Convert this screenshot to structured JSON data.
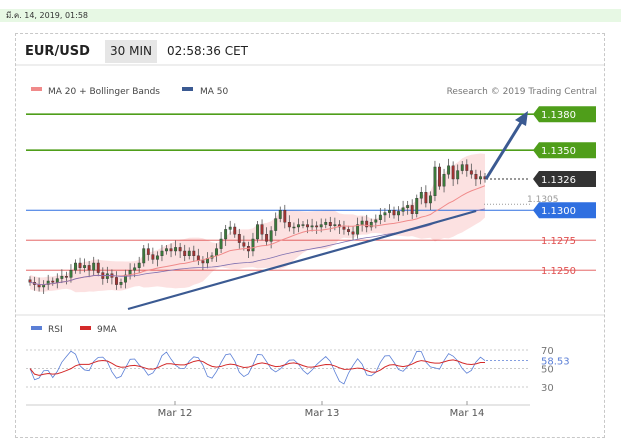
{
  "topbar": {
    "datetime": "มี.ค. 14, 2019, 01:58"
  },
  "header": {
    "symbol": "EUR/USD",
    "timeframe": "30 MIN",
    "clock": "02:58:36 CET"
  },
  "legend": {
    "ma20": {
      "label": "MA 20 + Bollinger Bands",
      "color": "#f08a8a"
    },
    "ma50": {
      "label": "MA 50",
      "color": "#3b5a92"
    }
  },
  "credit": "Research © 2019 Trading Central",
  "chart_data": {
    "type": "candlestick",
    "ylim": [
      1.1232,
      1.1392
    ],
    "levels": [
      {
        "value": 1.138,
        "label": "1.1380",
        "style": "resistance",
        "color": "#4f9e1a"
      },
      {
        "value": 1.135,
        "label": "1.1350",
        "style": "resistance",
        "color": "#4f9e1a"
      },
      {
        "value": 1.1326,
        "label": "1.1326",
        "style": "last",
        "color": "#333333"
      },
      {
        "value": 1.1305,
        "label": "1.1305",
        "style": "tick",
        "color": "#999999"
      },
      {
        "value": 1.13,
        "label": "1.1300",
        "style": "pivot",
        "color": "#2f6fe0"
      },
      {
        "value": 1.1275,
        "label": "1.1275",
        "style": "support",
        "color": "#e05050"
      },
      {
        "value": 1.125,
        "label": "1.1250",
        "style": "support",
        "color": "#e05050"
      }
    ],
    "x_ticks": [
      "Mar 12",
      "Mar 13",
      "Mar 14"
    ],
    "closes": [
      1.124,
      1.1238,
      1.1236,
      1.1238,
      1.1241,
      1.124,
      1.1243,
      1.1245,
      1.1244,
      1.125,
      1.1256,
      1.1252,
      1.1254,
      1.125,
      1.1256,
      1.1248,
      1.1243,
      1.1247,
      1.1244,
      1.1238,
      1.124,
      1.1246,
      1.125,
      1.1252,
      1.1256,
      1.1268,
      1.1263,
      1.1259,
      1.1262,
      1.1266,
      1.1268,
      1.1266,
      1.1269,
      1.1266,
      1.1262,
      1.1266,
      1.1262,
      1.1258,
      1.1256,
      1.126,
      1.1262,
      1.1268,
      1.1276,
      1.1284,
      1.1286,
      1.128,
      1.1273,
      1.127,
      1.1266,
      1.1276,
      1.1288,
      1.128,
      1.1274,
      1.1283,
      1.1293,
      1.13,
      1.129,
      1.1286,
      1.1286,
      1.1288,
      1.1288,
      1.1286,
      1.1287,
      1.1286,
      1.1288,
      1.129,
      1.1287,
      1.1288,
      1.1286,
      1.1284,
      1.1282,
      1.128,
      1.1288,
      1.1291,
      1.1286,
      1.129,
      1.1292,
      1.1296,
      1.1298,
      1.13,
      1.1296,
      1.1299,
      1.1302,
      1.1304,
      1.1297,
      1.131,
      1.1315,
      1.1306,
      1.1312,
      1.1336,
      1.132,
      1.133,
      1.1337,
      1.1326,
      1.1333,
      1.1338,
      1.1333,
      1.133,
      1.1326,
      1.1328,
      1.1326
    ],
    "rsi": {
      "ticks": [
        "70",
        "50",
        "30"
      ],
      "ylim": [
        20,
        78
      ],
      "last_label": "58.53",
      "series": [
        {
          "name": "RSI",
          "color": "#5b7fd6"
        },
        {
          "name": "9MA",
          "color": "#d42a2a"
        }
      ]
    }
  }
}
